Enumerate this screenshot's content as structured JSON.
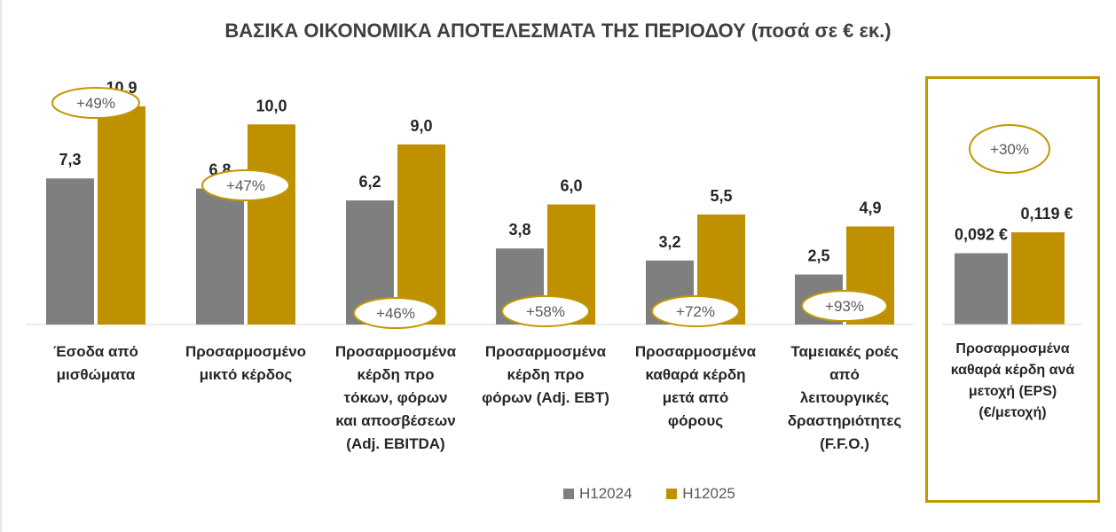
{
  "chart_data": {
    "type": "bar",
    "title": "ΒΑΣΙΚΑ ΟΙΚΟΝΟΜΙΚΑ ΑΠΟΤΕΛΕΣΜΑΤΑ ΤΗΣ ΠΕΡΙΟΔΟΥ (ποσά σε € εκ.)",
    "categories": [
      "Έσοδα από\nμισθώματα",
      "Προσαρμοσμένο\nμικτό κέρδος",
      "Προσαρμοσμένα\nκέρδη προ\nτόκων, φόρων\nκαι αποσβέσεων\n(Adj. EBITDA)",
      "Προσαρμοσμένα\nκέρδη προ\nφόρων (Adj. EBT)",
      "Προσαρμοσμένα\nκαθαρά κέρδη\nμετά από\nφόρους",
      "Ταμειακές ροές\nαπό\nλειτουργικές\nδραστηριότητες\n(F.F.O.)"
    ],
    "series": [
      {
        "name": "H12024",
        "color": "#7f7f7f",
        "values": [
          7.3,
          6.8,
          6.2,
          3.8,
          3.2,
          2.5
        ],
        "labels": [
          "7,3",
          "6,8",
          "6,2",
          "3,8",
          "3,2",
          "2,5"
        ]
      },
      {
        "name": "H12025",
        "color": "#bf9000",
        "values": [
          10.9,
          10.0,
          9.0,
          6.0,
          5.5,
          4.9
        ],
        "labels": [
          "10,9",
          "10,0",
          "9,0",
          "6,0",
          "5,5",
          "4,9"
        ]
      }
    ],
    "growth": [
      "+49%",
      "+47%",
      "+46%",
      "+58%",
      "+72%",
      "+93%"
    ],
    "eps": {
      "category": "Προσαρμοσμένα\nκαθαρά κέρδη ανά\nμετοχή (EPS)\n(€/μετοχή)",
      "values": [
        0.092,
        0.119
      ],
      "labels": [
        "0,092 €",
        "0,119 €"
      ],
      "growth": "+30%"
    },
    "ylim": [
      0,
      11.5
    ],
    "legend_position": "bottom"
  }
}
